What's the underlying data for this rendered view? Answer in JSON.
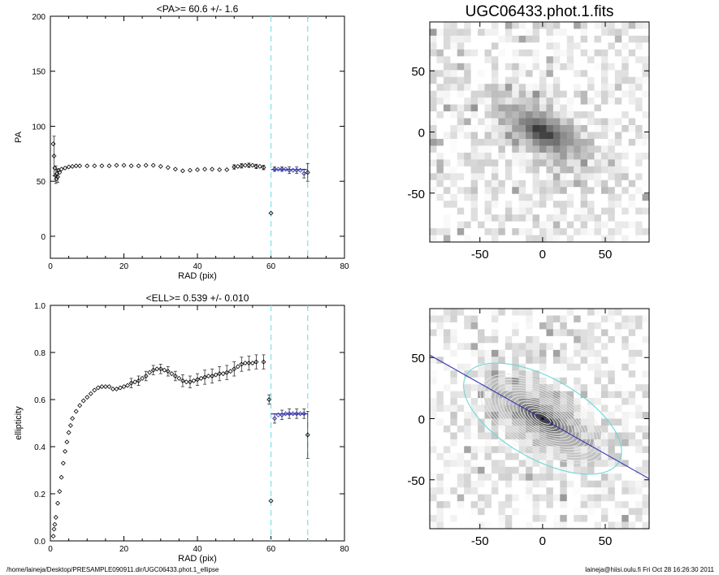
{
  "footer": {
    "path": "/home/laineja/Desktop/PRESAMPLE090911.dir/UGC06433.phot.1_ellipse",
    "user": "laineja@hiisi.oulu.fi  Fri Oct 28 16:26:30 2011"
  },
  "colors": {
    "fit": "#2a2ab0",
    "guide": "#7fe0e8",
    "contour": "#e8e8e8",
    "ellipse": "#6fd6d6"
  },
  "chart_data": [
    {
      "type": "scatter",
      "title": "<PA>=  60.6 +/-   1.6",
      "xlabel": "RAD (pix)",
      "ylabel": "PA",
      "xlim": [
        0,
        80
      ],
      "ylim": [
        -20,
        200
      ],
      "xticks": [
        0,
        20,
        40,
        60,
        80
      ],
      "yticks": [
        0,
        50,
        100,
        150,
        200
      ],
      "guides_x": [
        60,
        70
      ],
      "fit": {
        "x": [
          60,
          70
        ],
        "y": 60.6
      },
      "points": [
        [
          0.8,
          84
        ],
        [
          1.0,
          73
        ],
        [
          1.2,
          62
        ],
        [
          1.4,
          55
        ],
        [
          1.6,
          52
        ],
        [
          1.8,
          57
        ],
        [
          2.0,
          54
        ],
        [
          2.2,
          60
        ],
        [
          2.5,
          58
        ],
        [
          3,
          61
        ],
        [
          4,
          62
        ],
        [
          5,
          63
        ],
        [
          6,
          63.5
        ],
        [
          7,
          64
        ],
        [
          8,
          64
        ],
        [
          10,
          64
        ],
        [
          12,
          64
        ],
        [
          14,
          64
        ],
        [
          16,
          64
        ],
        [
          18,
          64.5
        ],
        [
          20,
          64.5
        ],
        [
          22,
          64
        ],
        [
          24,
          64
        ],
        [
          26,
          64.5
        ],
        [
          28,
          64.5
        ],
        [
          30,
          63.5
        ],
        [
          32,
          62.5
        ],
        [
          34,
          61
        ],
        [
          36,
          59.5
        ],
        [
          38,
          60
        ],
        [
          40,
          60.5
        ],
        [
          42,
          61
        ],
        [
          44,
          61
        ],
        [
          46,
          60.5
        ],
        [
          48,
          60.5
        ],
        [
          50,
          63
        ],
        [
          51,
          63.5
        ],
        [
          52,
          64
        ],
        [
          53,
          64.5
        ],
        [
          54,
          64.5
        ],
        [
          55,
          64.5
        ],
        [
          56,
          63.5
        ],
        [
          57,
          63.5
        ],
        [
          58,
          62.5
        ],
        [
          60,
          21
        ],
        [
          61,
          61
        ],
        [
          62,
          61
        ],
        [
          63,
          61
        ],
        [
          64,
          61
        ],
        [
          65,
          60
        ],
        [
          66,
          60
        ],
        [
          67,
          60
        ],
        [
          68,
          60
        ],
        [
          69,
          57
        ],
        [
          70,
          58
        ]
      ],
      "error_bars": [
        [
          1.0,
          73,
          18
        ],
        [
          1.5,
          56,
          8
        ],
        [
          2.0,
          55,
          6
        ],
        [
          50,
          63,
          2
        ],
        [
          52,
          64,
          2
        ],
        [
          54,
          64.5,
          2
        ],
        [
          56,
          63.5,
          2
        ],
        [
          58,
          62.5,
          2
        ],
        [
          61,
          61,
          2
        ],
        [
          63,
          61,
          2
        ],
        [
          65,
          60,
          3
        ],
        [
          67,
          60,
          3
        ],
        [
          69,
          57,
          4
        ],
        [
          70,
          58,
          8
        ]
      ]
    },
    {
      "type": "scatter",
      "title": "<ELL>= 0.539 +/-  0.010",
      "xlabel": "RAD (pix)",
      "ylabel": "ellipticity",
      "xlim": [
        0,
        80
      ],
      "ylim": [
        0,
        1
      ],
      "xticks": [
        0,
        20,
        40,
        60,
        80
      ],
      "yticks": [
        0.0,
        0.2,
        0.4,
        0.6,
        0.8,
        1.0
      ],
      "guides_x": [
        60,
        70
      ],
      "fit": {
        "x": [
          60,
          70
        ],
        "y": 0.539
      },
      "points": [
        [
          0.8,
          0.02
        ],
        [
          1.0,
          0.05
        ],
        [
          1.2,
          0.07
        ],
        [
          1.5,
          0.1
        ],
        [
          2.0,
          0.16
        ],
        [
          2.5,
          0.21
        ],
        [
          3.0,
          0.27
        ],
        [
          3.5,
          0.33
        ],
        [
          4.0,
          0.38
        ],
        [
          4.5,
          0.42
        ],
        [
          5.0,
          0.46
        ],
        [
          5.5,
          0.49
        ],
        [
          6,
          0.52
        ],
        [
          7,
          0.55
        ],
        [
          8,
          0.575
        ],
        [
          9,
          0.595
        ],
        [
          10,
          0.61
        ],
        [
          11,
          0.625
        ],
        [
          12,
          0.64
        ],
        [
          13,
          0.65
        ],
        [
          14,
          0.655
        ],
        [
          15,
          0.655
        ],
        [
          16,
          0.655
        ],
        [
          17,
          0.645
        ],
        [
          18,
          0.645
        ],
        [
          19,
          0.65
        ],
        [
          20,
          0.655
        ],
        [
          21,
          0.66
        ],
        [
          22,
          0.67
        ],
        [
          23,
          0.675
        ],
        [
          24,
          0.68
        ],
        [
          25,
          0.69
        ],
        [
          26,
          0.7
        ],
        [
          27,
          0.715
        ],
        [
          28,
          0.725
        ],
        [
          29,
          0.73
        ],
        [
          30,
          0.73
        ],
        [
          31,
          0.725
        ],
        [
          32,
          0.72
        ],
        [
          33,
          0.71
        ],
        [
          34,
          0.7
        ],
        [
          35,
          0.69
        ],
        [
          36,
          0.68
        ],
        [
          37,
          0.675
        ],
        [
          38,
          0.675
        ],
        [
          39,
          0.68
        ],
        [
          40,
          0.685
        ],
        [
          41,
          0.69
        ],
        [
          42,
          0.695
        ],
        [
          43,
          0.7
        ],
        [
          44,
          0.7
        ],
        [
          45,
          0.705
        ],
        [
          46,
          0.71
        ],
        [
          47,
          0.71
        ],
        [
          48,
          0.715
        ],
        [
          49,
          0.72
        ],
        [
          50,
          0.73
        ],
        [
          51,
          0.74
        ],
        [
          52,
          0.75
        ],
        [
          53,
          0.755
        ],
        [
          54,
          0.755
        ],
        [
          55,
          0.755
        ],
        [
          56,
          0.76
        ],
        [
          58,
          0.76
        ],
        [
          59.5,
          0.6
        ],
        [
          60,
          0.17
        ],
        [
          61,
          0.52
        ],
        [
          62,
          0.535
        ],
        [
          63,
          0.535
        ],
        [
          64,
          0.54
        ],
        [
          65,
          0.54
        ],
        [
          66,
          0.54
        ],
        [
          67,
          0.54
        ],
        [
          68,
          0.54
        ],
        [
          69,
          0.54
        ],
        [
          70,
          0.45
        ]
      ],
      "error_bars": [
        [
          22,
          0.67,
          0.02
        ],
        [
          24,
          0.68,
          0.02
        ],
        [
          26,
          0.7,
          0.02
        ],
        [
          28,
          0.725,
          0.02
        ],
        [
          30,
          0.73,
          0.02
        ],
        [
          32,
          0.72,
          0.02
        ],
        [
          34,
          0.7,
          0.02
        ],
        [
          36,
          0.68,
          0.025
        ],
        [
          38,
          0.675,
          0.025
        ],
        [
          40,
          0.685,
          0.025
        ],
        [
          42,
          0.695,
          0.03
        ],
        [
          44,
          0.7,
          0.03
        ],
        [
          46,
          0.71,
          0.03
        ],
        [
          48,
          0.715,
          0.03
        ],
        [
          50,
          0.73,
          0.03
        ],
        [
          52,
          0.75,
          0.03
        ],
        [
          54,
          0.755,
          0.03
        ],
        [
          56,
          0.76,
          0.03
        ],
        [
          58,
          0.76,
          0.03
        ],
        [
          59.5,
          0.6,
          0.02
        ],
        [
          61,
          0.52,
          0.02
        ],
        [
          63,
          0.535,
          0.02
        ],
        [
          65,
          0.54,
          0.02
        ],
        [
          67,
          0.54,
          0.02
        ],
        [
          69,
          0.54,
          0.02
        ],
        [
          70,
          0.45,
          0.1
        ]
      ]
    },
    {
      "type": "heatmap",
      "title": "UGC06433.phot.1.fits",
      "xlim": [
        -90,
        85
      ],
      "ylim": [
        -90,
        90
      ],
      "xticks": [
        -50,
        0,
        50
      ],
      "yticks": [
        -50,
        0,
        50
      ]
    },
    {
      "type": "heatmap",
      "title": "",
      "xlim": [
        -90,
        85
      ],
      "ylim": [
        -90,
        90
      ],
      "xticks": [
        -50,
        0,
        50
      ],
      "yticks": [
        -50,
        0,
        50
      ],
      "major_axis_line": {
        "angle_deg": -29.4
      },
      "outer_ellipse": {
        "semi_major": 70,
        "ellipticity": 0.539
      }
    }
  ]
}
